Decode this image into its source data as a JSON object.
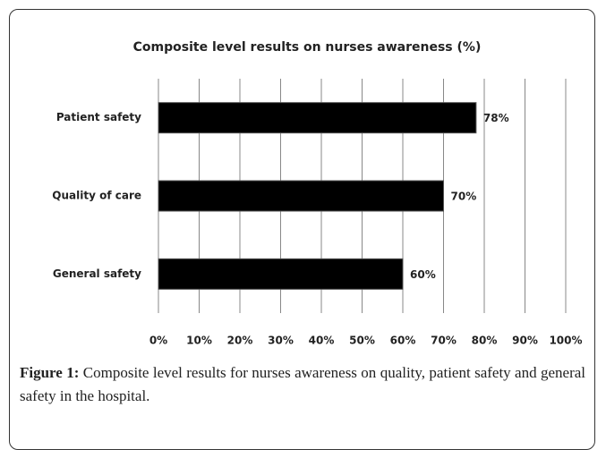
{
  "chart_data": {
    "type": "bar",
    "orientation": "horizontal",
    "title": "Composite level results on nurses awareness (%)",
    "categories": [
      "Patient safety",
      "Quality of  care",
      "General safety"
    ],
    "values": [
      78,
      70,
      60
    ],
    "value_labels": [
      "78%",
      "70%",
      "60%"
    ],
    "color": "#000000",
    "xlim": [
      0,
      100
    ],
    "xticks": [
      {
        "value": 0,
        "label": "0%"
      },
      {
        "value": 10,
        "label": "10%"
      },
      {
        "value": 20,
        "label": "20%"
      },
      {
        "value": 30,
        "label": "30%"
      },
      {
        "value": 40,
        "label": "40%"
      },
      {
        "value": 50,
        "label": "50%"
      },
      {
        "value": 60,
        "label": "60%"
      },
      {
        "value": 70,
        "label": "70%"
      },
      {
        "value": 80,
        "label": "80%"
      },
      {
        "value": 90,
        "label": "90%"
      },
      {
        "value": 100,
        "label": "100%"
      }
    ],
    "grid": true
  },
  "caption": {
    "label": "Figure 1:",
    "text": "Composite level results for nurses awareness on quality, patient safety and general safety in the hospital."
  }
}
